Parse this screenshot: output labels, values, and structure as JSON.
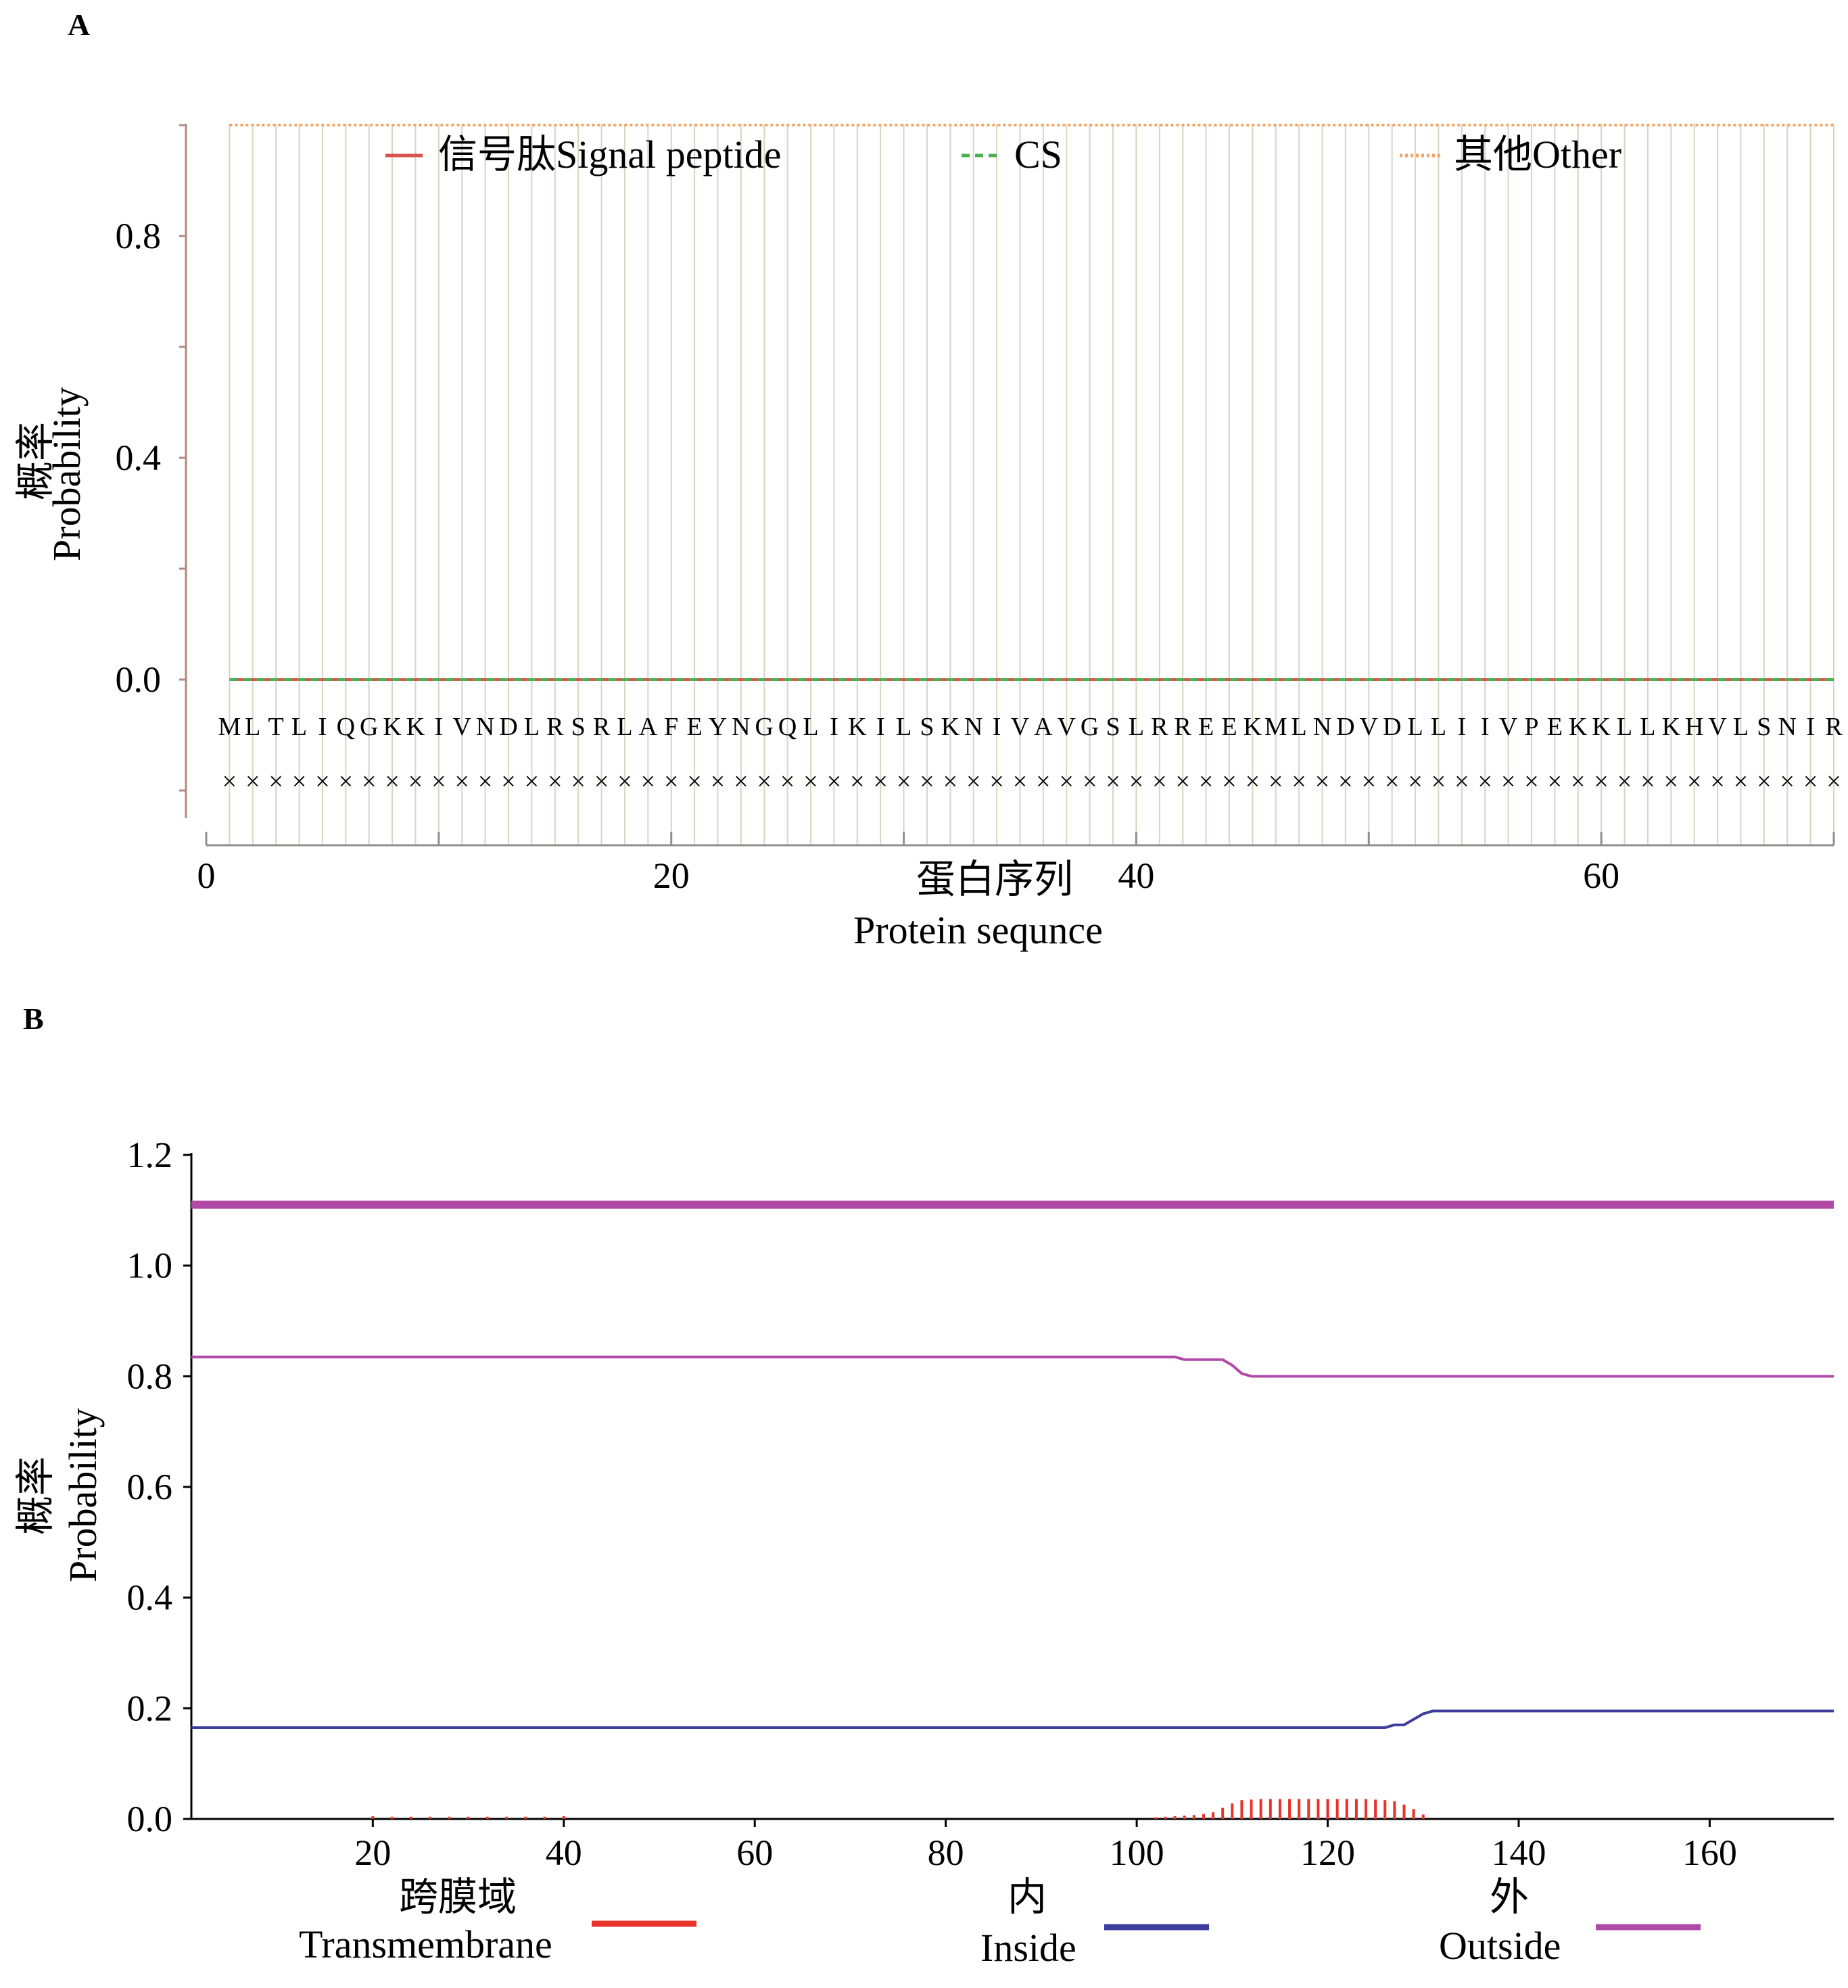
{
  "chart_data": [
    {
      "panel": "A",
      "type": "line",
      "xlabel_cn": "蛋白序列",
      "xlabel_en": "Protein sequnce",
      "ylabel_cn": "概率",
      "ylabel_en": "Probability",
      "xlim": [
        0,
        70
      ],
      "ylim": [
        -0.25,
        1.0
      ],
      "x_ticks": [
        0,
        20,
        40,
        60
      ],
      "y_ticks": [
        0.0,
        0.4,
        0.8
      ],
      "y_tick_labels": [
        "0.0",
        "0.4",
        "0.8"
      ],
      "sequence": [
        "M",
        "L",
        "T",
        "L",
        "I",
        "Q",
        "G",
        "K",
        "K",
        "I",
        "V",
        "N",
        "D",
        "L",
        "R",
        "S",
        "R",
        "L",
        "A",
        "F",
        "E",
        "Y",
        "N",
        "G",
        "Q",
        "L",
        "I",
        "K",
        "I",
        "L",
        "S",
        "K",
        "N",
        "I",
        "V",
        "A",
        "V",
        "G",
        "S",
        "L",
        "R",
        "R",
        "E",
        "E",
        "K",
        "M",
        "L",
        "N",
        "D",
        "V",
        "D",
        "L",
        "L",
        "I",
        "I",
        "V",
        "P",
        "E",
        "K",
        "K",
        "L",
        "L",
        "K",
        "H",
        "V",
        "L",
        "S",
        "N",
        "I",
        "R"
      ],
      "cleavage_marker": "×",
      "legend_position": "top",
      "series": [
        {
          "name_cn": "信号肽",
          "name_en": "Signal peptide",
          "style": "solid",
          "color": "#d9534f",
          "x_range": [
            1,
            70
          ],
          "value": 0.0
        },
        {
          "name_cn": "",
          "name_en": "CS",
          "style": "dashed",
          "color": "#4caf50",
          "x_range": [
            1,
            70
          ],
          "value": 0.0
        },
        {
          "name_cn": "其他",
          "name_en": "Other",
          "style": "dotted",
          "color": "#f4a460",
          "x_range": [
            1,
            70
          ],
          "value": 1.0
        }
      ]
    },
    {
      "panel": "B",
      "type": "line",
      "ylabel_cn": "概率",
      "ylabel_en": "Probability",
      "xlim": [
        1,
        173
      ],
      "ylim": [
        0,
        1.2
      ],
      "x_ticks": [
        20,
        40,
        60,
        80,
        100,
        120,
        140,
        160
      ],
      "y_ticks": [
        0.0,
        0.2,
        0.4,
        0.6,
        0.8,
        1.0,
        1.2
      ],
      "y_tick_labels": [
        "0.0",
        "0.2",
        "0.4",
        "0.6",
        "0.8",
        "1.0",
        "1.2"
      ],
      "legend_position": "bottom",
      "series": [
        {
          "name_cn": "跨膜域",
          "name_en": "Transmembrane",
          "color": "#e8322a",
          "type": "bars",
          "x": [
            20,
            22,
            24,
            26,
            28,
            30,
            32,
            34,
            36,
            38,
            40,
            102,
            103,
            104,
            105,
            106,
            107,
            108,
            109,
            110,
            111,
            112,
            113,
            114,
            115,
            116,
            117,
            118,
            119,
            120,
            121,
            122,
            123,
            124,
            125,
            126,
            127,
            128,
            129,
            130
          ],
          "values": [
            0.005,
            0.004,
            0.004,
            0.004,
            0.004,
            0.004,
            0.004,
            0.004,
            0.004,
            0.004,
            0.005,
            0.003,
            0.004,
            0.005,
            0.006,
            0.007,
            0.009,
            0.012,
            0.02,
            0.028,
            0.034,
            0.035,
            0.036,
            0.036,
            0.036,
            0.036,
            0.036,
            0.036,
            0.036,
            0.036,
            0.036,
            0.036,
            0.036,
            0.036,
            0.035,
            0.034,
            0.032,
            0.026,
            0.018,
            0.008
          ]
        },
        {
          "name_cn": "内",
          "name_en": "Inside",
          "color": "#3d3d9e",
          "type": "line",
          "x": [
            1,
            126,
            127,
            128,
            129,
            130,
            131,
            173
          ],
          "values": [
            0.165,
            0.165,
            0.17,
            0.17,
            0.18,
            0.19,
            0.195,
            0.195
          ]
        },
        {
          "name_cn": "外",
          "name_en": "Outside",
          "color": "#b04aa6",
          "type": "line",
          "x": [
            1,
            104,
            105,
            109,
            110,
            111,
            112,
            173
          ],
          "values": [
            0.835,
            0.835,
            0.83,
            0.83,
            0.82,
            0.805,
            0.8,
            0.8
          ]
        },
        {
          "name_cn": "",
          "name_en": "",
          "color": "#b04aa6",
          "type": "line",
          "x": [
            1,
            173
          ],
          "values": [
            1.11,
            1.11
          ]
        }
      ]
    }
  ],
  "labels": {
    "panel_a": "A",
    "panel_b": "B"
  }
}
